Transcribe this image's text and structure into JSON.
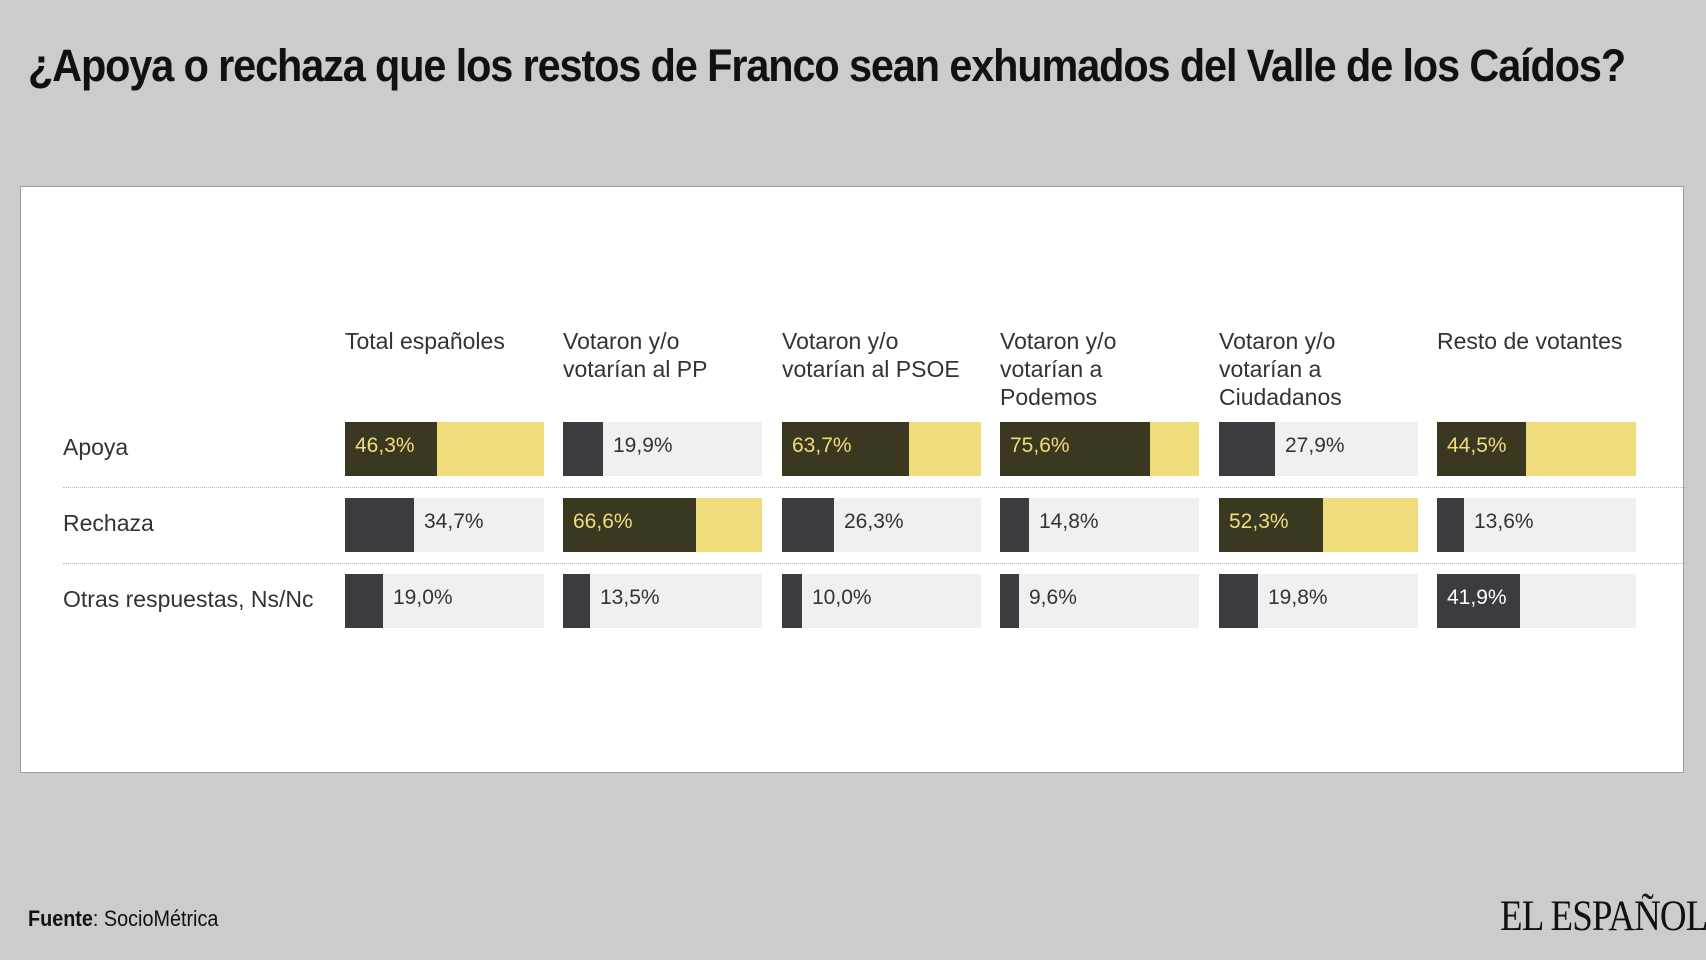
{
  "title": "¿Apoya o rechaza que los restos de Franco sean exhumados del Valle de los Caídos?",
  "source": {
    "label": "Fuente",
    "value": "SocioMétrica"
  },
  "logo": "EL ESPAÑOL",
  "colors": {
    "highlight_fill": "#3b3822",
    "highlight_bg": "#efdc7a",
    "dark_fill": "#3a3c40",
    "track": "#f0f0f0"
  },
  "chart_data": {
    "type": "table",
    "title": "¿Apoya o rechaza que los restos de Franco sean exhumados del Valle de los Caídos?",
    "unit": "%",
    "columns": [
      "Total españoles",
      "Votaron y/o votarían al PP",
      "Votaron y/o votarían al PSOE",
      "Votaron y/o votarían a Podemos",
      "Votaron y/o votarían a Ciudadanos",
      "Resto de votantes"
    ],
    "rows": [
      {
        "label": "Apoya",
        "values": [
          46.3,
          19.9,
          63.7,
          75.6,
          27.9,
          44.5
        ],
        "labels": [
          "46,3%",
          "19,9%",
          "63,7%",
          "75,6%",
          "27,9%",
          "44,5%"
        ]
      },
      {
        "label": "Rechaza",
        "values": [
          34.7,
          66.6,
          26.3,
          14.8,
          52.3,
          13.6
        ],
        "labels": [
          "34,7%",
          "66,6%",
          "26,3%",
          "14,8%",
          "52,3%",
          "13,6%"
        ]
      },
      {
        "label": "Otras respuestas, Ns/Nc",
        "values": [
          19.0,
          13.5,
          10.0,
          9.6,
          19.8,
          41.9
        ],
        "labels": [
          "19,0%",
          "13,5%",
          "10,0%",
          "9,6%",
          "19,8%",
          "41,9%"
        ]
      }
    ],
    "highlight": "max value in each column",
    "xlim": [
      0,
      100
    ]
  }
}
